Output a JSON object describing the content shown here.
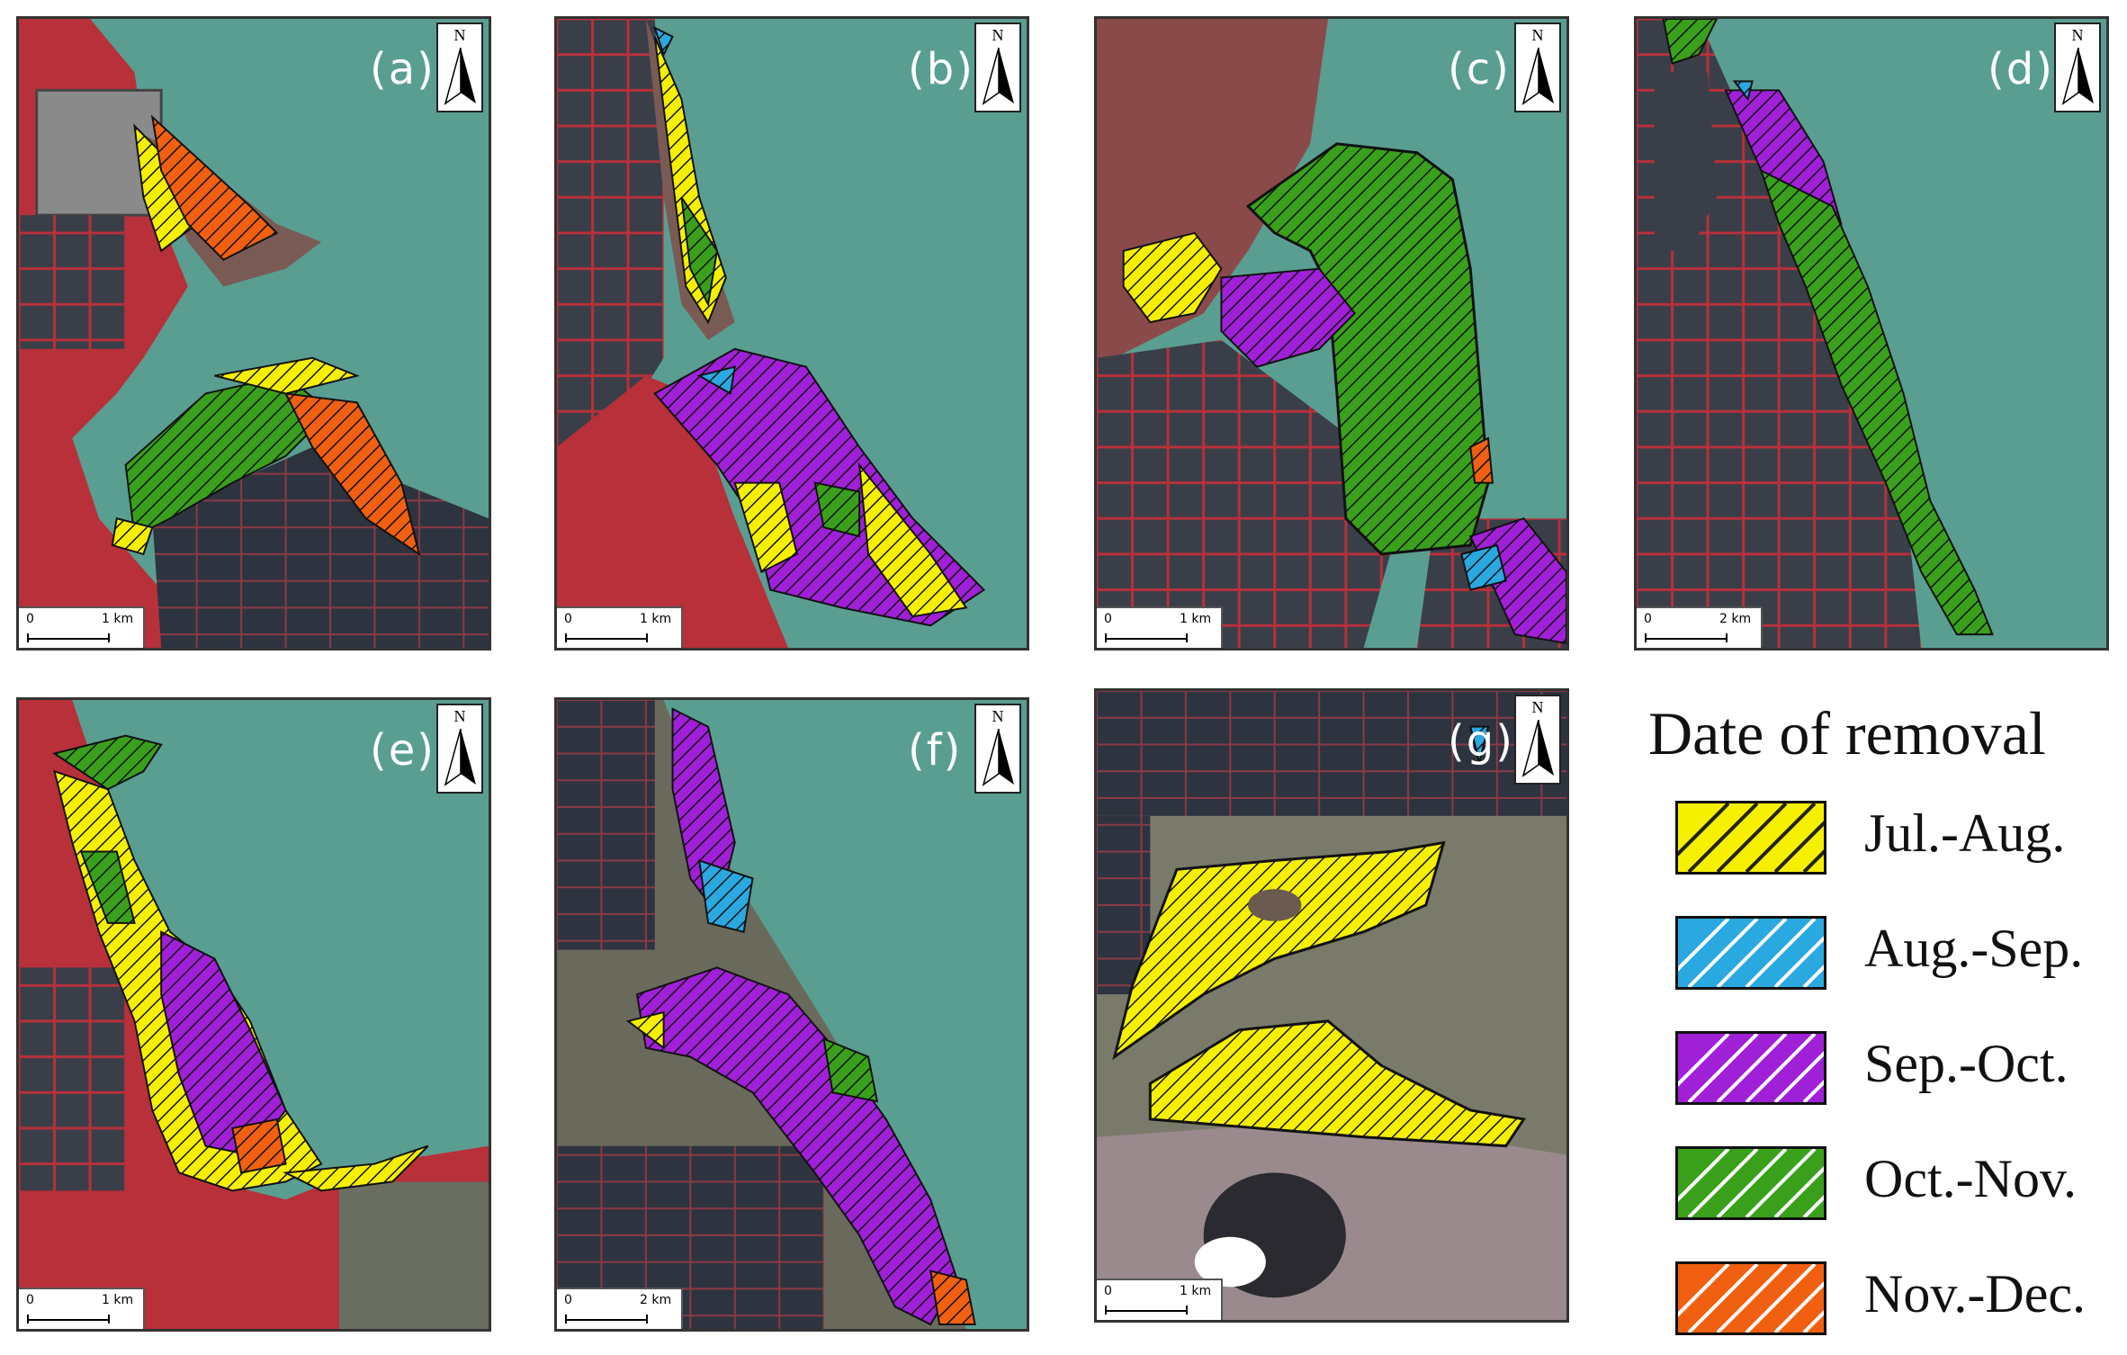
{
  "figure": {
    "panels": [
      {
        "id": "a",
        "label": "(a)",
        "north": "N",
        "scale_zero": "0",
        "scale_length": "1 km"
      },
      {
        "id": "b",
        "label": "(b)",
        "north": "N",
        "scale_zero": "0",
        "scale_length": "1 km"
      },
      {
        "id": "c",
        "label": "(c)",
        "north": "N",
        "scale_zero": "0",
        "scale_length": "1 km"
      },
      {
        "id": "d",
        "label": "(d)",
        "north": "N",
        "scale_zero": "0",
        "scale_length": "2 km"
      },
      {
        "id": "e",
        "label": "(e)",
        "north": "N",
        "scale_zero": "0",
        "scale_length": "1 km"
      },
      {
        "id": "f",
        "label": "(f)",
        "north": "N",
        "scale_zero": "0",
        "scale_length": "2 km"
      },
      {
        "id": "g",
        "label": "(g)",
        "north": "N",
        "scale_zero": "0",
        "scale_length": "1 km"
      }
    ]
  },
  "legend": {
    "title": "Date of removal",
    "items": [
      {
        "label": "Jul.-Aug.",
        "color": "#f5f000",
        "stripe": "#222222"
      },
      {
        "label": "Aug.-Sep.",
        "color": "#2aa8e0",
        "stripe": "#ffffff"
      },
      {
        "label": "Sep.-Oct.",
        "color": "#a020d8",
        "stripe": "#ffffff"
      },
      {
        "label": "Oct.-Nov.",
        "color": "#3aa01c",
        "stripe": "#ffffff"
      },
      {
        "label": "Nov.-Dec.",
        "color": "#f06010",
        "stripe": "#ffffff"
      }
    ]
  },
  "colors": {
    "water": "#5a9e92",
    "land_red": "#b8303a",
    "land_dark": "#3a3e48",
    "mud": "#7a7a6a"
  }
}
